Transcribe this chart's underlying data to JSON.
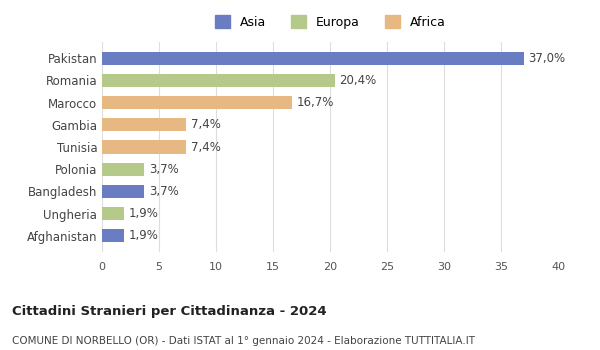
{
  "categories": [
    "Afghanistan",
    "Ungheria",
    "Bangladesh",
    "Polonia",
    "Tunisia",
    "Gambia",
    "Marocco",
    "Romania",
    "Pakistan"
  ],
  "values": [
    1.9,
    1.9,
    3.7,
    3.7,
    7.4,
    7.4,
    16.7,
    20.4,
    37.0
  ],
  "labels": [
    "1,9%",
    "1,9%",
    "3,7%",
    "3,7%",
    "7,4%",
    "7,4%",
    "16,7%",
    "20,4%",
    "37,0%"
  ],
  "continents": [
    "Asia",
    "Europa",
    "Asia",
    "Europa",
    "Africa",
    "Africa",
    "Africa",
    "Europa",
    "Asia"
  ],
  "colors": {
    "Asia": "#6b7dc2",
    "Europa": "#b5c98a",
    "Africa": "#e8b882"
  },
  "xlim": [
    0,
    40
  ],
  "xticks": [
    0,
    5,
    10,
    15,
    20,
    25,
    30,
    35,
    40
  ],
  "title_bold": "Cittadini Stranieri per Cittadinanza - 2024",
  "subtitle": "COMUNE DI NORBELLO (OR) - Dati ISTAT al 1° gennaio 2024 - Elaborazione TUTTITALIA.IT",
  "background_color": "#ffffff",
  "bar_height": 0.6,
  "label_fontsize": 8.5,
  "axis_label_color": "#555555",
  "grid_color": "#dddddd",
  "legend_order": [
    "Asia",
    "Europa",
    "Africa"
  ]
}
